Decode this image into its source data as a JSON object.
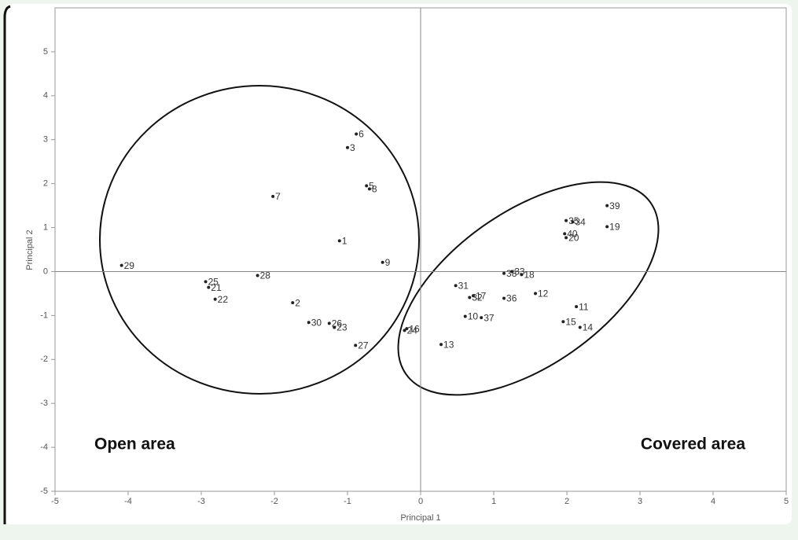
{
  "chart_data": {
    "type": "scatter",
    "x_label": "Principal 1",
    "y_label": "Principal 2",
    "annotations": [
      "Open area",
      "Covered area"
    ],
    "labels": [
      "29",
      "25",
      "21",
      "22",
      "28",
      "7",
      "2",
      "30",
      "26",
      "23",
      "1",
      "27",
      "3",
      "6",
      "5",
      "8",
      "9",
      "16",
      "24",
      "13",
      "31",
      "32",
      "17",
      "10",
      "37",
      "36",
      "38",
      "33",
      "18",
      "12",
      "11",
      "15",
      "14",
      "39",
      "19",
      "35",
      "34",
      "40",
      "20"
    ],
    "x": [
      -4.09,
      -2.94,
      -2.9,
      -2.81,
      -2.23,
      -2.02,
      -1.75,
      -1.53,
      -1.25,
      -1.18,
      -1.11,
      -0.89,
      -1.0,
      -0.88,
      -0.74,
      -0.7,
      -0.52,
      -0.19,
      -0.22,
      0.28,
      0.48,
      0.67,
      0.72,
      0.61,
      0.83,
      1.14,
      1.14,
      1.25,
      1.38,
      1.57,
      2.13,
      1.95,
      2.18,
      2.55,
      2.55,
      1.99,
      2.08,
      1.97,
      1.99
    ],
    "y": [
      0.14,
      -0.23,
      -0.36,
      -0.63,
      -0.09,
      1.71,
      -0.71,
      -1.16,
      -1.18,
      -1.27,
      0.7,
      -1.68,
      2.82,
      3.13,
      1.95,
      1.88,
      0.21,
      -1.3,
      -1.34,
      -1.66,
      -0.32,
      -0.59,
      -0.55,
      -1.02,
      -1.05,
      -0.61,
      -0.04,
      0.0,
      -0.07,
      -0.5,
      -0.8,
      -1.14,
      -1.27,
      1.5,
      1.02,
      1.16,
      1.13,
      0.86,
      0.77
    ],
    "color": "#222222",
    "xlim": [
      -5,
      5
    ],
    "xticks": [
      -5,
      -4,
      -3,
      -2,
      -1,
      0,
      1,
      2,
      3,
      4,
      5
    ],
    "ylim": [
      -5,
      6
    ],
    "yticks": [
      -5,
      -4,
      -3,
      -2,
      -1,
      0,
      1,
      2,
      3,
      4,
      5
    ]
  }
}
